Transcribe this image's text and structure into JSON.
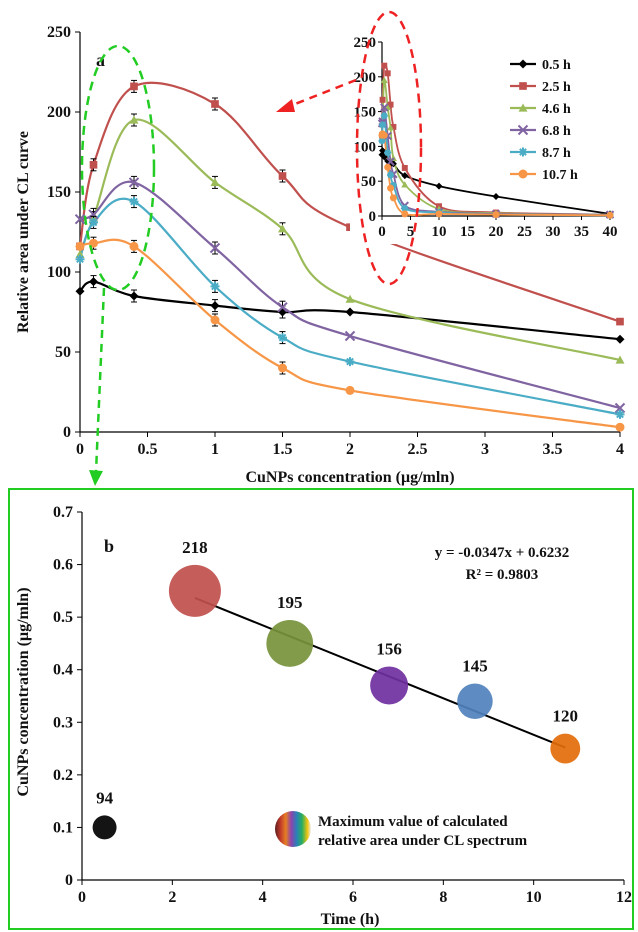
{
  "chart_data": [
    {
      "type": "line",
      "panel": "a",
      "xlabel": "CuNPs concentration (μg/mln)",
      "ylabel": "Relative area under CL curve",
      "xlim": [
        0,
        4
      ],
      "ylim": [
        0,
        250
      ],
      "xticks": [
        "0",
        "0.5",
        "1",
        "1.5",
        "2",
        "2.5",
        "3",
        "3.5",
        "4"
      ],
      "yticks": [
        "0",
        "50",
        "100",
        "150",
        "200",
        "250"
      ],
      "x": [
        0,
        0.1,
        0.4,
        1,
        1.5,
        2,
        4
      ],
      "series": [
        {
          "name": "0.5 h",
          "color": "#000000",
          "marker": "diamond",
          "values": [
            88,
            94,
            85,
            79,
            75,
            75,
            58
          ]
        },
        {
          "name": "2.5 h",
          "color": "#c0504d",
          "marker": "square",
          "values": [
            116,
            167,
            216,
            205,
            160,
            128,
            69
          ]
        },
        {
          "name": "4.6 h",
          "color": "#9bbb59",
          "marker": "triangle",
          "values": [
            111,
            134,
            195,
            156,
            127,
            83,
            45
          ]
        },
        {
          "name": "6.8 h",
          "color": "#8064a2",
          "marker": "x",
          "values": [
            133,
            136,
            156,
            115,
            78,
            60,
            15
          ]
        },
        {
          "name": "8.7 h",
          "color": "#4bacc6",
          "marker": "star",
          "values": [
            108,
            131,
            144,
            91,
            59,
            44,
            11
          ]
        },
        {
          "name": "10.7 h",
          "color": "#f79646",
          "marker": "circle",
          "values": [
            116,
            118,
            116,
            70,
            40,
            26,
            3
          ]
        }
      ],
      "legend_position": "inset top-right",
      "inset": {
        "xlim": [
          0,
          40
        ],
        "ylim": [
          0,
          250
        ],
        "xticks": [
          "0",
          "5",
          "10",
          "15",
          "20",
          "25",
          "30",
          "35",
          "40"
        ],
        "yticks": [
          "0",
          "50",
          "100",
          "150",
          "200",
          "250"
        ],
        "x": [
          0,
          0.1,
          0.4,
          1,
          1.5,
          2,
          4,
          10,
          20,
          40
        ],
        "series": [
          {
            "name": "0.5 h",
            "values": [
              88,
              94,
              85,
              79,
              75,
              75,
              58,
              43,
              28,
              3
            ]
          },
          {
            "name": "2.5 h",
            "values": [
              116,
              167,
              216,
              205,
              160,
              128,
              69,
              14,
              5,
              2
            ]
          },
          {
            "name": "4.6 h",
            "values": [
              111,
              134,
              195,
              156,
              127,
              83,
              45,
              10,
              4,
              2
            ]
          },
          {
            "name": "6.8 h",
            "values": [
              133,
              136,
              156,
              115,
              78,
              60,
              15,
              6,
              3,
              2
            ]
          },
          {
            "name": "8.7 h",
            "values": [
              108,
              131,
              144,
              91,
              59,
              44,
              11,
              5,
              2,
              1
            ]
          },
          {
            "name": "10.7 h",
            "values": [
              116,
              118,
              116,
              70,
              40,
              26,
              3,
              3,
              2,
              1
            ]
          }
        ]
      }
    },
    {
      "type": "scatter",
      "panel": "b",
      "xlabel": "Time (h)",
      "ylabel": "CuNPs concentration (μg/mln)",
      "xlim": [
        0,
        12
      ],
      "ylim": [
        0,
        0.7
      ],
      "xticks": [
        "0",
        "2",
        "4",
        "6",
        "8",
        "10",
        "12"
      ],
      "yticks": [
        "0",
        "0.1",
        "0.2",
        "0.3",
        "0.4",
        "0.5",
        "0.6",
        "0.7"
      ],
      "points": [
        {
          "x": 0.5,
          "y": 0.1,
          "label": "94",
          "value": 94,
          "color": "#000000"
        },
        {
          "x": 2.5,
          "y": 0.55,
          "label": "218",
          "value": 218,
          "color": "#c0504d"
        },
        {
          "x": 4.6,
          "y": 0.45,
          "label": "195",
          "value": 195,
          "color": "#77933c"
        },
        {
          "x": 6.8,
          "y": 0.37,
          "label": "156",
          "value": 156,
          "color": "#7030a0"
        },
        {
          "x": 8.7,
          "y": 0.34,
          "label": "145",
          "value": 145,
          "color": "#4f81bd"
        },
        {
          "x": 10.7,
          "y": 0.25,
          "label": "120",
          "value": 120,
          "color": "#e36c09"
        }
      ],
      "trendline": {
        "slope": -0.0347,
        "intercept": 0.6232,
        "x_range": [
          2.5,
          10.7
        ]
      },
      "equation": "y = -0.0347x + 0.6232",
      "r_squared": "R² = 0.9803",
      "note_lines": [
        "Maximum value of calculated",
        "relative area under CL spectrum"
      ]
    }
  ]
}
